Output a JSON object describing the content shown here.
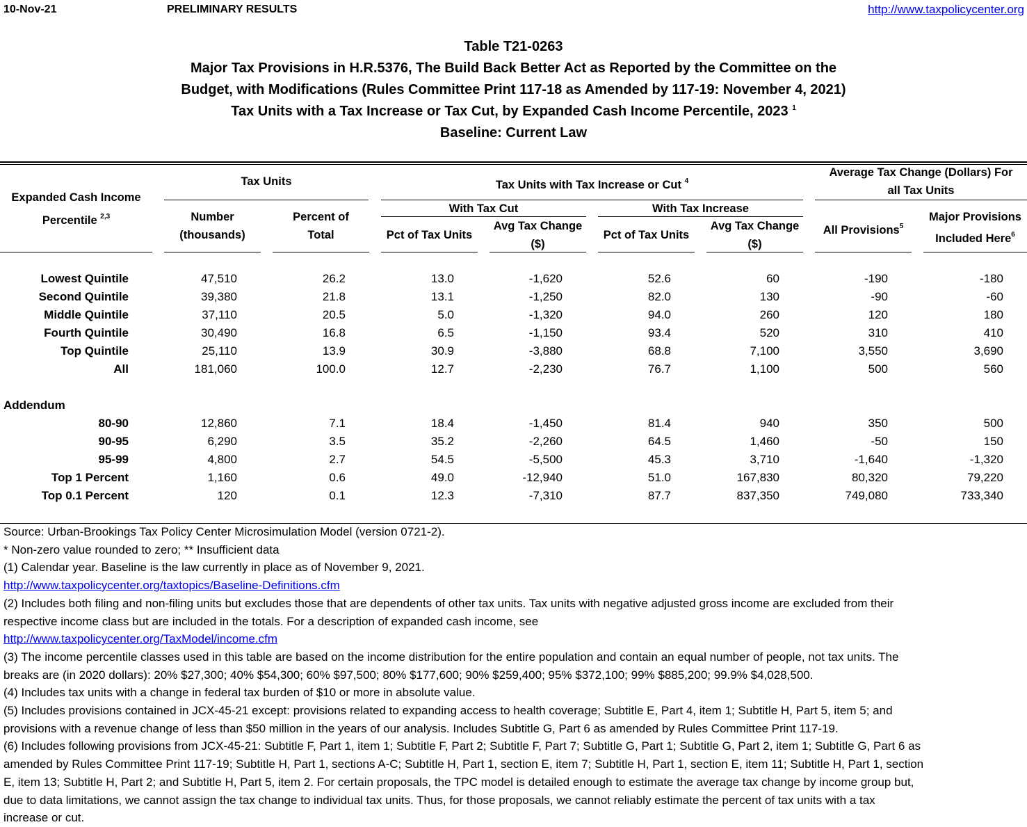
{
  "header": {
    "date": "10-Nov-21",
    "status": "PRELIMINARY RESULTS",
    "url": "http://www.taxpolicycenter.org"
  },
  "title": {
    "table_id": "Table T21-0263",
    "line1": "Major Tax Provisions in H.R.5376, The Build Back Better Act as Reported by the Committee on the",
    "line2": "Budget, with Modifications (Rules Committee Print 117-18 as Amended by 117-19: November 4, 2021)",
    "line3": "Tax Units with a Tax Increase or Tax Cut, by Expanded Cash Income Percentile, 2023",
    "line3_sup": "1",
    "line4": "Baseline: Current Law"
  },
  "columns": {
    "percentile_l1": "Expanded Cash Income",
    "percentile_l2": "Percentile",
    "percentile_sup": "2,3",
    "tax_units": "Tax Units",
    "number_l1": "Number",
    "number_l2": "(thousands)",
    "pct_total_l1": "Percent of",
    "pct_total_l2": "Total",
    "incr_cut": "Tax Units with Tax Increase or Cut",
    "incr_cut_sup": "4",
    "with_cut": "With Tax Cut",
    "with_increase": "With Tax Increase",
    "pct_units": "Pct of Tax Units",
    "avg_change_l1": "Avg Tax Change",
    "avg_change_l2": "($)",
    "avg_all_l1": "Average Tax Change (Dollars) For",
    "avg_all_l2": "all Tax Units",
    "all_prov": "All Provisions",
    "all_prov_sup": "5",
    "major_l1": "Major Provisions",
    "major_l2": "Included Here",
    "major_sup": "6"
  },
  "rows": [
    {
      "label": "Lowest Quintile",
      "values": [
        "47,510",
        "26.2",
        "13.0",
        "-1,620",
        "52.6",
        "60",
        "-190",
        "-180"
      ]
    },
    {
      "label": "Second Quintile",
      "values": [
        "39,380",
        "21.8",
        "13.1",
        "-1,250",
        "82.0",
        "130",
        "-90",
        "-60"
      ]
    },
    {
      "label": "Middle Quintile",
      "values": [
        "37,110",
        "20.5",
        "5.0",
        "-1,320",
        "94.0",
        "260",
        "120",
        "180"
      ]
    },
    {
      "label": "Fourth Quintile",
      "values": [
        "30,490",
        "16.8",
        "6.5",
        "-1,150",
        "93.4",
        "520",
        "310",
        "410"
      ]
    },
    {
      "label": "Top Quintile",
      "values": [
        "25,110",
        "13.9",
        "30.9",
        "-3,880",
        "68.8",
        "7,100",
        "3,550",
        "3,690"
      ]
    },
    {
      "label": "All",
      "values": [
        "181,060",
        "100.0",
        "12.7",
        "-2,230",
        "76.7",
        "1,100",
        "500",
        "560"
      ]
    }
  ],
  "addendum_label": "Addendum",
  "addendum_rows": [
    {
      "label": "80-90",
      "values": [
        "12,860",
        "7.1",
        "18.4",
        "-1,450",
        "81.4",
        "940",
        "350",
        "500"
      ]
    },
    {
      "label": "90-95",
      "values": [
        "6,290",
        "3.5",
        "35.2",
        "-2,260",
        "64.5",
        "1,460",
        "-50",
        "150"
      ]
    },
    {
      "label": "95-99",
      "values": [
        "4,800",
        "2.7",
        "54.5",
        "-5,500",
        "45.3",
        "3,710",
        "-1,640",
        "-1,320"
      ]
    },
    {
      "label": "Top 1 Percent",
      "values": [
        "1,160",
        "0.6",
        "49.0",
        "-12,940",
        "51.0",
        "167,830",
        "80,320",
        "79,220"
      ]
    },
    {
      "label": "Top 0.1 Percent",
      "values": [
        "120",
        "0.1",
        "12.3",
        "-7,310",
        "87.7",
        "837,350",
        "749,080",
        "733,340"
      ]
    }
  ],
  "footnotes": [
    {
      "text": "Source: Urban-Brookings Tax Policy Center Microsimulation Model (version 0721-2).",
      "link": false
    },
    {
      "text": "* Non-zero value rounded to zero; ** Insufficient data",
      "link": false
    },
    {
      "text": "(1) Calendar year. Baseline is the law currently in place as of November 9, 2021.",
      "link": false
    },
    {
      "text": "http://www.taxpolicycenter.org/taxtopics/Baseline-Definitions.cfm",
      "link": true
    },
    {
      "text": "(2) Includes both filing and non-filing units but excludes those that are dependents of other tax units. Tax units with negative adjusted gross income are excluded from their",
      "link": false
    },
    {
      "text": "respective income class but are included in the totals. For a description of expanded cash income, see",
      "link": false
    },
    {
      "text": "http://www.taxpolicycenter.org/TaxModel/income.cfm",
      "link": true
    },
    {
      "text": "(3) The income percentile classes used in this table are based on the income distribution for the entire population and contain an equal number of people, not tax units. The",
      "link": false
    },
    {
      "text": "breaks are (in 2020 dollars): 20% $27,300; 40% $54,300; 60% $97,500; 80% $177,600; 90% $259,400; 95% $372,100; 99% $885,200; 99.9% $4,028,500.",
      "link": false
    },
    {
      "text": "(4) Includes tax units with a change in federal tax burden of $10 or more in absolute value.",
      "link": false
    },
    {
      "text": "(5) Includes provisions contained in JCX-45-21 except: provisions related to expanding access to health coverage; Subtitle E, Part 4, item 1; Subtitle H, Part 5, item 5; and",
      "link": false
    },
    {
      "text": "provisions with a revenue change of less than $50 million in the years of our analysis. Includes Subtitle G, Part 6 as amended by Rules Committee Print 117-19.",
      "link": false
    },
    {
      "text": "(6) Includes following provisions from JCX-45-21: Subtitle F, Part 1, item 1;  Subtitle F, Part 2; Subtitle F, Part 7; Subtitle G, Part 1; Subtitle G, Part 2, item 1; Subtitle G, Part 6 as",
      "link": false
    },
    {
      "text": "amended by Rules Committee Print 117-19; Subtitle H, Part 1, sections A-C; Subtitle H, Part 1, section E, item 7; Subtitle H, Part 1, section E, item 11; Subtitle H, Part 1, section",
      "link": false
    },
    {
      "text": "E, item 13; Subtitle H, Part 2; and Subtitle H, Part 5, item 2. For certain proposals, the TPC model is detailed enough to estimate the average tax change by income group but,",
      "link": false
    },
    {
      "text": "due to data limitations, we cannot assign the tax change to individual tax units. Thus, for those proposals, we cannot reliably estimate the percent of tax units with a tax",
      "link": false
    },
    {
      "text": "increase or cut.",
      "link": false
    }
  ]
}
